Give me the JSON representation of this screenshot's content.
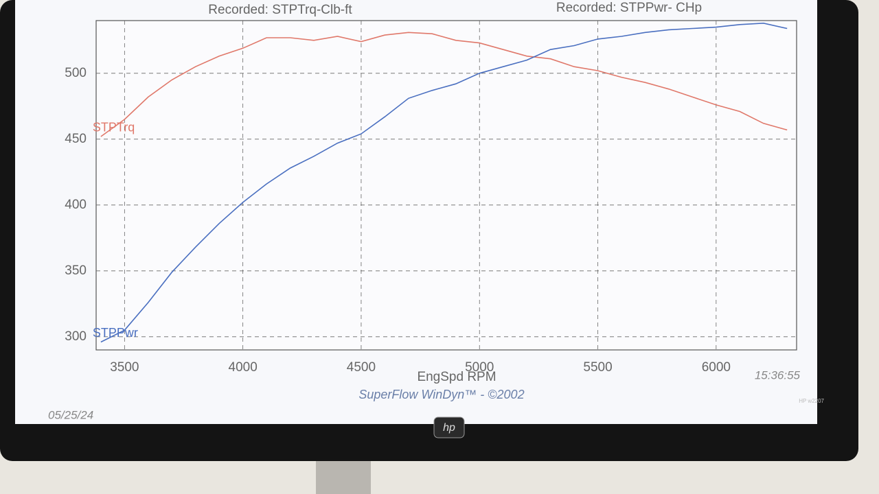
{
  "chart_data": {
    "type": "line",
    "title_left": "Recorded: STPTrq-Clb-ft",
    "title_right": "Recorded: STPPwr- CHp",
    "x_label": "EngSpd  RPM",
    "footer": "SuperFlow WinDyn™ - ©2002",
    "time": "15:36:55",
    "date": "05/25/24",
    "x": [
      3400,
      3500,
      3600,
      3700,
      3800,
      3900,
      4000,
      4100,
      4200,
      4300,
      4400,
      4500,
      4600,
      4700,
      4800,
      4900,
      5000,
      5100,
      5200,
      5300,
      5400,
      5500,
      5600,
      5700,
      5800,
      5900,
      6000,
      6100,
      6200,
      6300
    ],
    "series": [
      {
        "name": "STPTrq",
        "color": "#e0786a",
        "values": [
          452,
          465,
          482,
          495,
          505,
          513,
          519,
          527,
          527,
          525,
          528,
          524,
          529,
          531,
          530,
          525,
          523,
          518,
          513,
          511,
          505,
          502,
          497,
          493,
          488,
          482,
          476,
          471,
          462,
          457
        ]
      },
      {
        "name": "STPPwr",
        "color": "#4a6fc0",
        "values": [
          296,
          305,
          326,
          349,
          368,
          386,
          402,
          416,
          428,
          437,
          447,
          454,
          467,
          481,
          487,
          492,
          500,
          505,
          510,
          518,
          521,
          526,
          528,
          531,
          533,
          534,
          535,
          537,
          538,
          534
        ]
      }
    ],
    "xlim": [
      3380,
      6340
    ],
    "xticks": [
      3500,
      4000,
      4500,
      5000,
      5500,
      6000
    ],
    "ylim": [
      290,
      540
    ],
    "yticks": [
      300,
      350,
      400,
      450,
      500
    ],
    "grid": true
  },
  "monitor": {
    "logo": "hp",
    "model": "HP w2207"
  }
}
